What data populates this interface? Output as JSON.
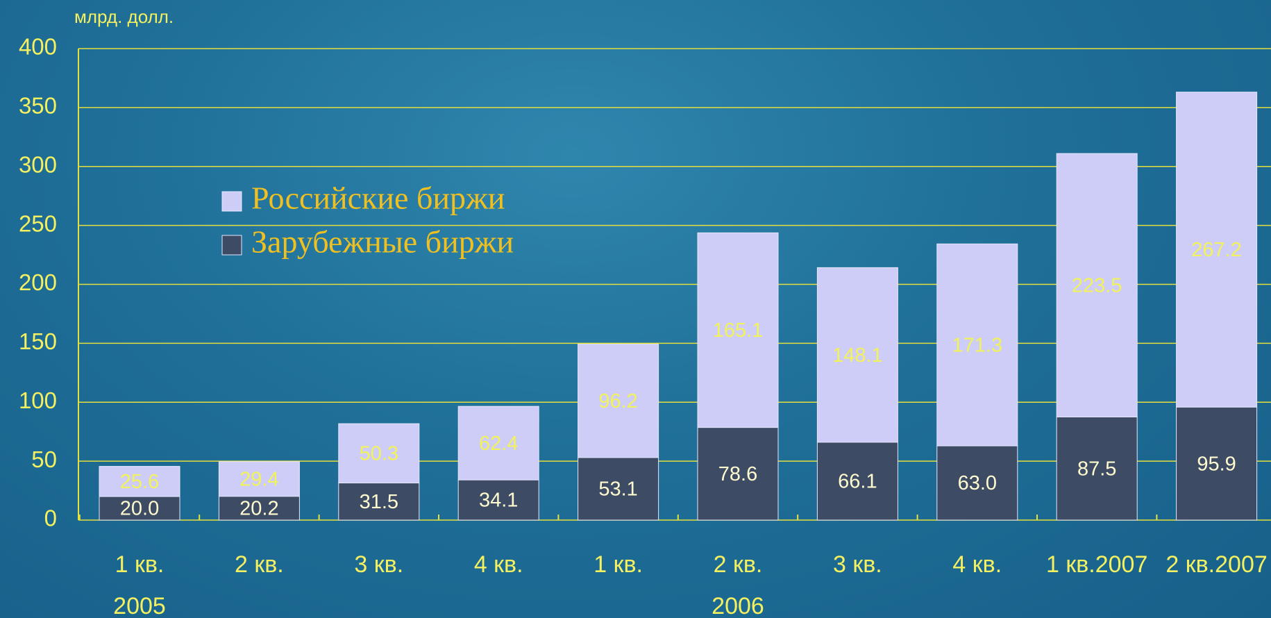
{
  "chart_data": {
    "type": "stacked_bar",
    "y_unit_label": "млрд. долл.",
    "categories": [
      "1 кв.",
      "2 кв.",
      "3 кв.",
      "4 кв.",
      "1 кв.",
      "2 кв.",
      "3 кв.",
      "4 кв.",
      "1 кв.2007",
      "2 кв.2007"
    ],
    "x_groups": [
      {
        "label": "2005",
        "at": 0
      },
      {
        "label": "2006",
        "at": 5
      }
    ],
    "series": [
      {
        "name": "Зарубежные биржи",
        "color": "#3d4c64",
        "label_color": "#fffbd0",
        "values": [
          20.0,
          20.2,
          31.5,
          34.1,
          53.1,
          78.6,
          66.1,
          63.0,
          87.5,
          95.9
        ],
        "value_labels": [
          "20.0",
          "20.2",
          "31.5",
          "34.1",
          "53.1",
          "78.6",
          "66.1",
          "63.0",
          "87.5",
          "95.9"
        ]
      },
      {
        "name": "Российские биржи",
        "color": "#cdcdf7",
        "label_color": "#f2f25a",
        "values": [
          25.6,
          29.4,
          50.3,
          62.4,
          96.2,
          165.1,
          148.1,
          171.3,
          223.5,
          267.2
        ],
        "value_labels": [
          "25.6",
          "29.4",
          "50.3",
          "62.4",
          "96.2",
          "165.1",
          "148.1",
          "171.3",
          "223.5",
          "267.2"
        ]
      }
    ],
    "legend_order": [
      1,
      0
    ],
    "ylim": [
      0,
      400
    ],
    "yticks": [
      0,
      50,
      100,
      150,
      200,
      250,
      300,
      350,
      400
    ],
    "grid": true
  }
}
